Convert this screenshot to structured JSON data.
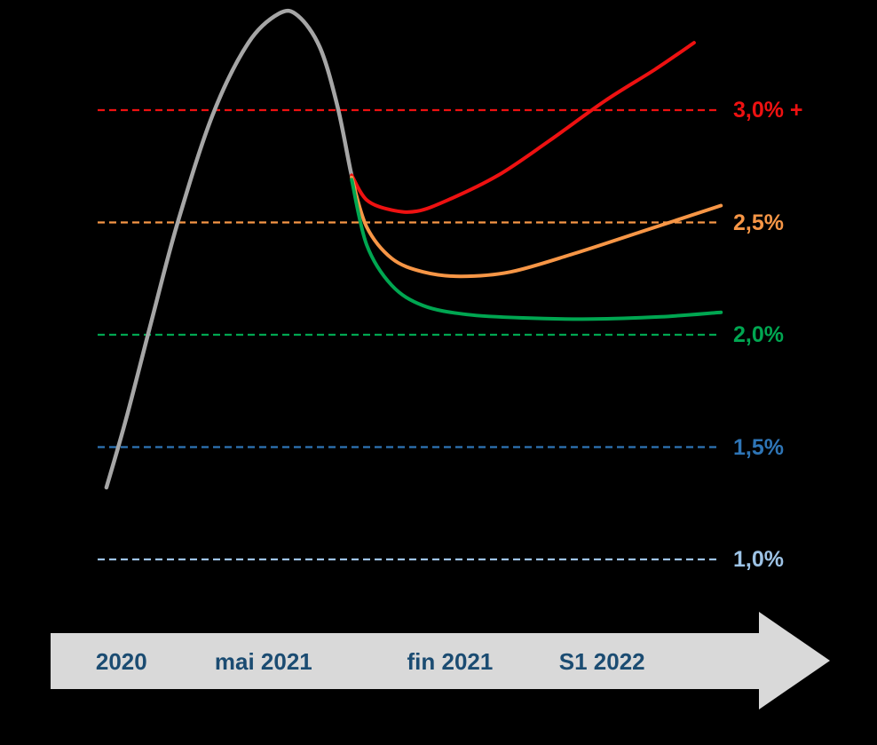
{
  "chart_data": {
    "type": "line",
    "title": "",
    "y_axis": {
      "unit": "%",
      "min": 1.0,
      "max": 3.5,
      "grid": "dashed-reference-lines"
    },
    "x_axis": {
      "labels": [
        {
          "label": "2020",
          "t": 0.038
        },
        {
          "label": "mai 2021",
          "t": 0.265
        },
        {
          "label": "fin 2021",
          "t": 0.563
        },
        {
          "label": "S1 2022",
          "t": 0.806
        }
      ]
    },
    "reference_lines": [
      {
        "label": "3,0% +",
        "value": 3.0,
        "color": "#ee1111"
      },
      {
        "label": "2,5%",
        "value": 2.5,
        "color": "#F79646"
      },
      {
        "label": "2,0%",
        "value": 2.0,
        "color": "#00A651"
      },
      {
        "label": "1,5%",
        "value": 1.5,
        "color": "#2E75B6"
      },
      {
        "label": "1,0%",
        "value": 1.0,
        "color": "#9DC3E6"
      }
    ],
    "series": [
      {
        "name": "inflation-observee-2020-mai-2021",
        "color": "#A6A6A6",
        "width": 4.5,
        "points": [
          [
            0.014,
            1.32
          ],
          [
            0.045,
            1.62
          ],
          [
            0.085,
            2.05
          ],
          [
            0.128,
            2.5
          ],
          [
            0.184,
            2.98
          ],
          [
            0.241,
            3.3
          ],
          [
            0.29,
            3.43
          ],
          [
            0.32,
            3.42
          ],
          [
            0.355,
            3.28
          ],
          [
            0.383,
            3.02
          ],
          [
            0.405,
            2.72
          ],
          [
            0.412,
            2.66
          ]
        ]
      },
      {
        "name": "scenario-haut",
        "color": "#ee1111",
        "width": 4,
        "points": [
          [
            0.406,
            2.71
          ],
          [
            0.43,
            2.6
          ],
          [
            0.47,
            2.555
          ],
          [
            0.51,
            2.55
          ],
          [
            0.56,
            2.6
          ],
          [
            0.64,
            2.71
          ],
          [
            0.72,
            2.86
          ],
          [
            0.81,
            3.04
          ],
          [
            0.89,
            3.18
          ],
          [
            0.953,
            3.3
          ]
        ]
      },
      {
        "name": "scenario-central",
        "color": "#F79646",
        "width": 4,
        "points": [
          [
            0.406,
            2.7
          ],
          [
            0.43,
            2.48
          ],
          [
            0.47,
            2.34
          ],
          [
            0.52,
            2.28
          ],
          [
            0.58,
            2.26
          ],
          [
            0.66,
            2.28
          ],
          [
            0.76,
            2.36
          ],
          [
            0.87,
            2.46
          ],
          [
            0.996,
            2.575
          ]
        ]
      },
      {
        "name": "scenario-bas",
        "color": "#00A651",
        "width": 4,
        "points": [
          [
            0.406,
            2.69
          ],
          [
            0.43,
            2.4
          ],
          [
            0.47,
            2.22
          ],
          [
            0.52,
            2.13
          ],
          [
            0.59,
            2.09
          ],
          [
            0.68,
            2.075
          ],
          [
            0.79,
            2.07
          ],
          [
            0.9,
            2.08
          ],
          [
            0.996,
            2.1
          ]
        ]
      }
    ],
    "legend": "none"
  },
  "timeline": {
    "label_color": "#1b4c72",
    "arrow_color": "#D9D9D9"
  }
}
